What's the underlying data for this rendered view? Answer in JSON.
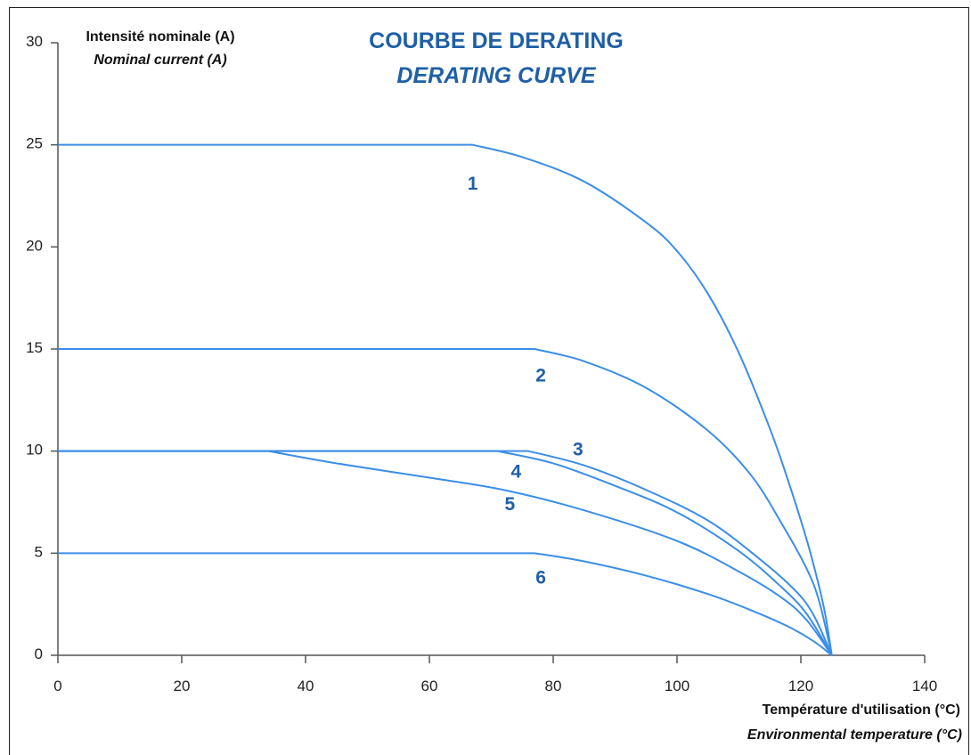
{
  "chart_data": {
    "type": "line",
    "title": "COURBE DE DERATING",
    "subtitle": "DERATING CURVE",
    "ylabel": "Intensité nominale (A)",
    "ylabel_en": "Nominal current (A)",
    "xlabel": "Température d'utilisation (°C)",
    "xlabel_en": "Environmental temperature (°C)",
    "xlim": [
      0,
      140
    ],
    "ylim": [
      0,
      30
    ],
    "x_ticks": [
      0,
      20,
      40,
      60,
      80,
      100,
      120,
      140
    ],
    "y_ticks": [
      0,
      5,
      10,
      15,
      20,
      25,
      30
    ],
    "grid": false,
    "colors": {
      "curve": "#3b8ee8",
      "label": "#1f5fa6",
      "axis": "#555555"
    },
    "series": [
      {
        "label": "1",
        "points": [
          [
            0,
            25
          ],
          [
            67,
            25
          ],
          [
            75,
            24.4
          ],
          [
            85,
            23.2
          ],
          [
            95,
            21.2
          ],
          [
            100,
            19.8
          ],
          [
            105,
            17.7
          ],
          [
            110,
            14.8
          ],
          [
            115,
            11.1
          ],
          [
            118,
            8.5
          ],
          [
            121,
            5.6
          ],
          [
            123,
            3.3
          ],
          [
            124,
            1.9
          ],
          [
            125,
            0
          ]
        ],
        "label_at": [
          67,
          22.8
        ]
      },
      {
        "label": "2",
        "points": [
          [
            0,
            15
          ],
          [
            77,
            15
          ],
          [
            85,
            14.4
          ],
          [
            95,
            13.1
          ],
          [
            105,
            11.0
          ],
          [
            112,
            8.8
          ],
          [
            117,
            6.4
          ],
          [
            121,
            4.2
          ],
          [
            123,
            2.6
          ],
          [
            125,
            0
          ]
        ],
        "label_at": [
          78,
          13.4
        ]
      },
      {
        "label": "3",
        "points": [
          [
            0,
            10
          ],
          [
            76,
            10
          ],
          [
            85,
            9.3
          ],
          [
            95,
            8.1
          ],
          [
            105,
            6.6
          ],
          [
            113,
            4.8
          ],
          [
            119,
            3.2
          ],
          [
            122,
            2.0
          ],
          [
            125,
            0
          ]
        ],
        "label_at": [
          84,
          9.8
        ]
      },
      {
        "label": "4",
        "points": [
          [
            0,
            10
          ],
          [
            71,
            10
          ],
          [
            80,
            9.4
          ],
          [
            90,
            8.3
          ],
          [
            100,
            7.0
          ],
          [
            110,
            5.1
          ],
          [
            117,
            3.3
          ],
          [
            121,
            2.0
          ],
          [
            125,
            0
          ]
        ],
        "label_at": [
          74,
          8.7
        ]
      },
      {
        "label": "5",
        "points": [
          [
            0,
            10
          ],
          [
            34,
            10
          ],
          [
            45,
            9.4
          ],
          [
            60,
            8.7
          ],
          [
            72,
            8.1
          ],
          [
            85,
            7.1
          ],
          [
            100,
            5.6
          ],
          [
            110,
            4.1
          ],
          [
            117,
            2.8
          ],
          [
            121,
            1.7
          ],
          [
            125,
            0
          ]
        ],
        "label_at": [
          73,
          7.1
        ]
      },
      {
        "label": "6",
        "points": [
          [
            0,
            5
          ],
          [
            77,
            5
          ],
          [
            85,
            4.6
          ],
          [
            95,
            3.9
          ],
          [
            105,
            3.0
          ],
          [
            112,
            2.2
          ],
          [
            118,
            1.4
          ],
          [
            122,
            0.7
          ],
          [
            125,
            0
          ]
        ],
        "label_at": [
          78,
          3.5
        ]
      }
    ]
  }
}
